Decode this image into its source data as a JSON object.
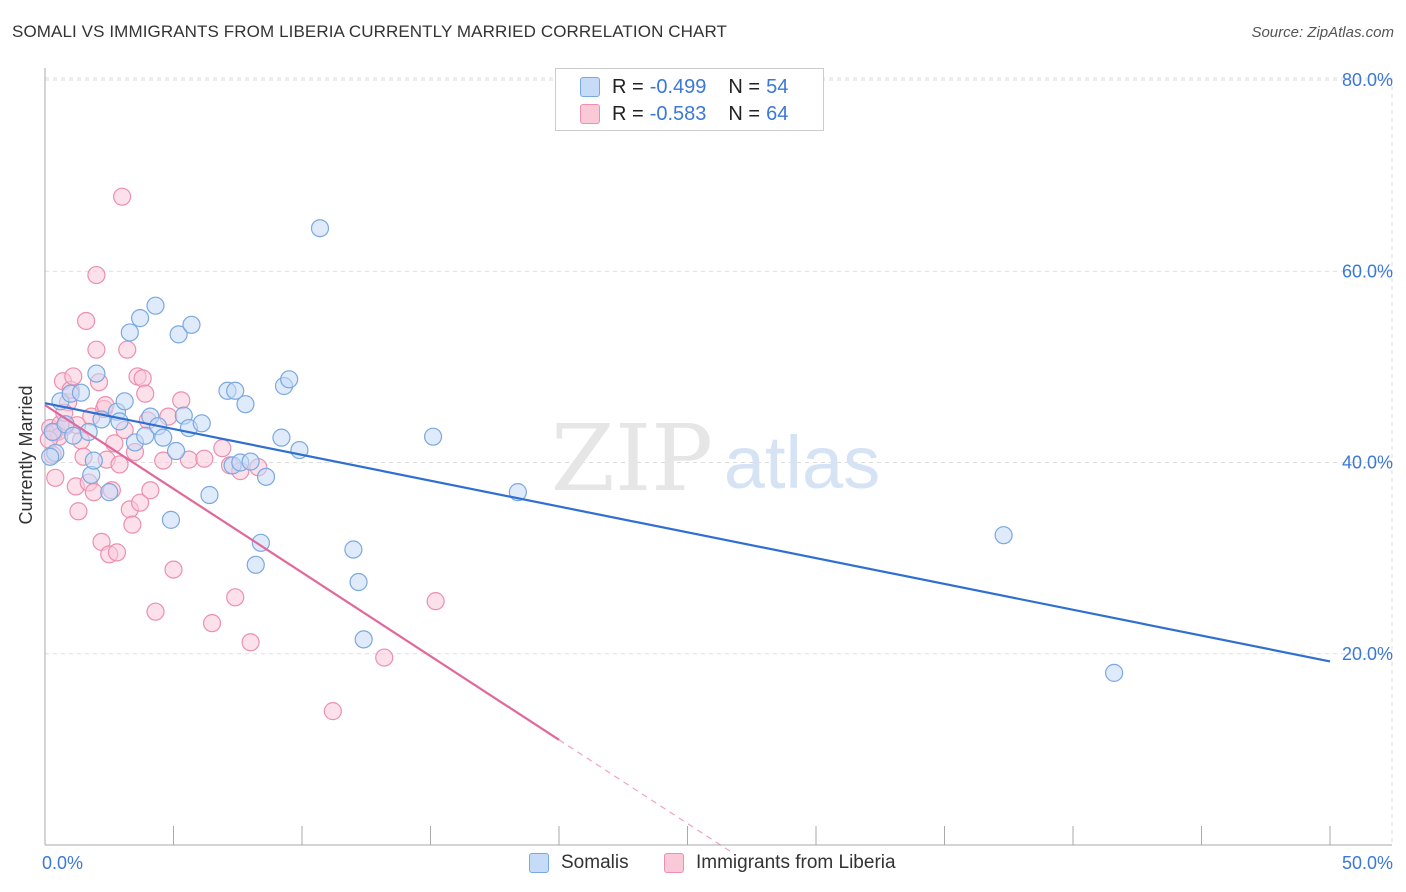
{
  "title": "SOMALI VS IMMIGRANTS FROM LIBERIA CURRENTLY MARRIED CORRELATION CHART",
  "source": "Source: ZipAtlas.com",
  "watermark": {
    "zip": "ZIP",
    "atlas": "atlas"
  },
  "legend_top": [
    {
      "r_label": "R =",
      "r_value": "-0.499",
      "n_label": "N =",
      "n_value": "54"
    },
    {
      "r_label": "R =",
      "r_value": "-0.583",
      "n_label": "N =",
      "n_value": "64"
    }
  ],
  "legend_bottom": [
    "Somalis",
    "Immigrants from Liberia"
  ],
  "colors": {
    "somalis_fill": "#c5dbf7",
    "somalis_stroke": "#7aa8e0",
    "somalis_line": "#2f6fd0",
    "liberia_fill": "#f9c9d8",
    "liberia_stroke": "#ec8fb0",
    "liberia_line": "#e0689a",
    "axis_label": "#3b78d8",
    "grid": "#dddddd"
  },
  "chart_data": {
    "type": "scatter",
    "title": "SOMALI VS IMMIGRANTS FROM LIBERIA CURRENTLY MARRIED CORRELATION CHART",
    "xlabel": "",
    "ylabel": "Currently Married",
    "xlim": [
      0,
      50
    ],
    "ylim": [
      0,
      82
    ],
    "x_tick_labels": [
      "0.0%",
      "50.0%"
    ],
    "y_ticks": [
      20,
      40,
      60,
      80
    ],
    "y_tick_labels": [
      "20.0%",
      "40.0%",
      "60.0%",
      "80.0%"
    ],
    "grid": true,
    "legend_position": "top-center",
    "series": [
      {
        "name": "Somalis",
        "r": -0.499,
        "n": 54,
        "trend": {
          "x": [
            0,
            50
          ],
          "y": [
            46.2,
            19.2
          ],
          "dashed_to_x": null
        },
        "points": [
          [
            0.3,
            43.2
          ],
          [
            0.4,
            41.0
          ],
          [
            0.6,
            46.4
          ],
          [
            0.8,
            44.0
          ],
          [
            1.0,
            47.2
          ],
          [
            1.1,
            42.8
          ],
          [
            1.4,
            47.3
          ],
          [
            1.7,
            43.2
          ],
          [
            1.8,
            38.7
          ],
          [
            1.9,
            40.2
          ],
          [
            2.0,
            49.3
          ],
          [
            2.2,
            44.5
          ],
          [
            2.5,
            36.9
          ],
          [
            2.8,
            45.3
          ],
          [
            2.9,
            44.3
          ],
          [
            3.1,
            46.4
          ],
          [
            3.3,
            53.6
          ],
          [
            3.5,
            42.1
          ],
          [
            3.7,
            55.1
          ],
          [
            3.9,
            42.8
          ],
          [
            4.1,
            44.8
          ],
          [
            4.3,
            56.4
          ],
          [
            4.4,
            43.8
          ],
          [
            4.6,
            42.6
          ],
          [
            4.9,
            34.0
          ],
          [
            5.1,
            41.2
          ],
          [
            5.2,
            53.4
          ],
          [
            5.4,
            44.9
          ],
          [
            5.6,
            43.6
          ],
          [
            5.7,
            54.4
          ],
          [
            6.1,
            44.1
          ],
          [
            6.4,
            36.6
          ],
          [
            7.1,
            47.5
          ],
          [
            7.3,
            39.7
          ],
          [
            7.4,
            47.5
          ],
          [
            7.6,
            40.0
          ],
          [
            7.8,
            46.1
          ],
          [
            8.0,
            40.1
          ],
          [
            8.2,
            29.3
          ],
          [
            8.4,
            31.6
          ],
          [
            8.6,
            38.5
          ],
          [
            9.2,
            42.6
          ],
          [
            9.3,
            48.0
          ],
          [
            9.5,
            48.7
          ],
          [
            9.9,
            41.3
          ],
          [
            10.7,
            64.5
          ],
          [
            12.0,
            30.9
          ],
          [
            12.2,
            27.5
          ],
          [
            12.4,
            21.5
          ],
          [
            15.1,
            42.7
          ],
          [
            18.4,
            36.9
          ],
          [
            37.3,
            32.4
          ],
          [
            41.6,
            18.0
          ],
          [
            0.2,
            40.6
          ]
        ]
      },
      {
        "name": "Immigrants from Liberia",
        "r": -0.583,
        "n": 64,
        "trend": {
          "x": [
            0,
            20
          ],
          "y": [
            46.0,
            11.0
          ],
          "dashed_to_x": 26.8,
          "dashed_to_y": -0.9
        },
        "points": [
          [
            0.2,
            43.6
          ],
          [
            0.3,
            40.8
          ],
          [
            0.4,
            38.4
          ],
          [
            0.5,
            43.2
          ],
          [
            0.6,
            44.0
          ],
          [
            0.7,
            48.5
          ],
          [
            0.8,
            43.8
          ],
          [
            0.9,
            46.3
          ],
          [
            1.0,
            47.6
          ],
          [
            1.1,
            49.0
          ],
          [
            1.2,
            37.5
          ],
          [
            1.3,
            34.9
          ],
          [
            1.4,
            42.3
          ],
          [
            1.5,
            40.6
          ],
          [
            1.6,
            54.8
          ],
          [
            1.7,
            37.9
          ],
          [
            1.8,
            44.8
          ],
          [
            1.9,
            36.9
          ],
          [
            2.0,
            51.8
          ],
          [
            2.0,
            59.6
          ],
          [
            2.1,
            48.4
          ],
          [
            2.2,
            31.7
          ],
          [
            2.3,
            45.6
          ],
          [
            2.4,
            40.3
          ],
          [
            2.5,
            30.4
          ],
          [
            2.6,
            37.1
          ],
          [
            2.7,
            42.0
          ],
          [
            2.8,
            30.6
          ],
          [
            2.9,
            39.8
          ],
          [
            3.0,
            67.8
          ],
          [
            3.1,
            43.4
          ],
          [
            3.2,
            51.8
          ],
          [
            3.3,
            35.1
          ],
          [
            3.4,
            33.5
          ],
          [
            3.5,
            41.1
          ],
          [
            3.6,
            49.0
          ],
          [
            3.7,
            35.8
          ],
          [
            3.8,
            48.8
          ],
          [
            3.9,
            47.2
          ],
          [
            4.0,
            44.4
          ],
          [
            4.1,
            37.1
          ],
          [
            4.3,
            24.4
          ],
          [
            4.6,
            40.2
          ],
          [
            4.8,
            44.8
          ],
          [
            5.0,
            28.8
          ],
          [
            5.3,
            46.5
          ],
          [
            5.6,
            40.3
          ],
          [
            6.2,
            40.4
          ],
          [
            6.5,
            23.2
          ],
          [
            6.9,
            41.5
          ],
          [
            7.2,
            39.7
          ],
          [
            7.4,
            25.9
          ],
          [
            7.6,
            39.1
          ],
          [
            8.0,
            21.2
          ],
          [
            8.3,
            39.5
          ],
          [
            11.2,
            14.0
          ],
          [
            13.2,
            19.6
          ],
          [
            15.2,
            25.5
          ],
          [
            0.35,
            43.1
          ],
          [
            0.55,
            42.7
          ],
          [
            0.75,
            45.2
          ],
          [
            1.25,
            43.9
          ],
          [
            0.15,
            42.4
          ],
          [
            2.35,
            46.0
          ]
        ]
      }
    ]
  }
}
